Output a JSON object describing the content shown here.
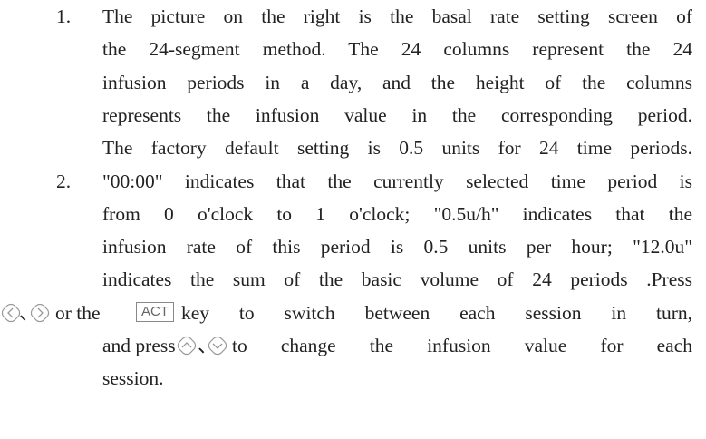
{
  "items": [
    {
      "number": "1.",
      "lines": [
        "The picture on the right is the basal rate setting screen of",
        "the 24-segment method. The 24 columns represent the 24",
        "infusion periods in a day, and the height of the columns",
        "represents the infusion value in the corresponding period.",
        "The factory default setting is 0.5 units for 24 time periods."
      ]
    },
    {
      "number": "2.",
      "lines": [
        "\"00:00\" indicates that the currently selected time period is",
        "from 0 o'clock to 1 o'clock; \"0.5u/h\" indicates that the",
        "infusion rate of this period is 0.5 units per hour; \"12.0u\"",
        "indicates the sum of the basic volume of 24 periods .Press"
      ],
      "switch_line": {
        "separator": "、",
        "before": "or the",
        "key": "ACT",
        "after": "key to switch between each session in turn,"
      },
      "change_line": {
        "before": "and press",
        "separator": "、",
        "after": "to change the infusion value for each"
      },
      "last_line": "session."
    }
  ]
}
